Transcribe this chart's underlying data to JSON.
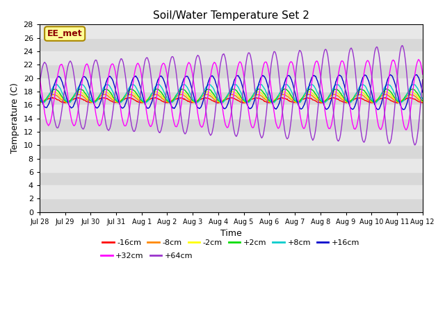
{
  "title": "Soil/Water Temperature Set 2",
  "xlabel": "Time",
  "ylabel": "Temperature (C)",
  "ylim": [
    0,
    28
  ],
  "yticks": [
    0,
    2,
    4,
    6,
    8,
    10,
    12,
    14,
    16,
    18,
    20,
    22,
    24,
    26,
    28
  ],
  "plot_bg_color": "#d8d8d8",
  "band_color": "#e8e8e8",
  "series": [
    {
      "label": "-16cm",
      "color": "#ff0000"
    },
    {
      "label": "-8cm",
      "color": "#ff8800"
    },
    {
      "label": "-2cm",
      "color": "#ffff00"
    },
    {
      "label": "+2cm",
      "color": "#00dd00"
    },
    {
      "label": "+8cm",
      "color": "#00cccc"
    },
    {
      "label": "+16cm",
      "color": "#0000cc"
    },
    {
      "label": "+32cm",
      "color": "#ff00ff"
    },
    {
      "label": "+64cm",
      "color": "#9933cc"
    }
  ],
  "xtick_labels": [
    "Jul 28",
    "Jul 29",
    "Jul 30",
    "Jul 31",
    "Aug 1",
    "Aug 2",
    "Aug 3",
    "Aug 4",
    "Aug 5",
    "Aug 6",
    "Aug 7",
    "Aug 8",
    "Aug 9",
    "Aug 10",
    "Aug 11",
    "Aug 12"
  ],
  "annotation_text": "EE_met",
  "legend_ncol1": 6,
  "legend_ncol2": 2
}
